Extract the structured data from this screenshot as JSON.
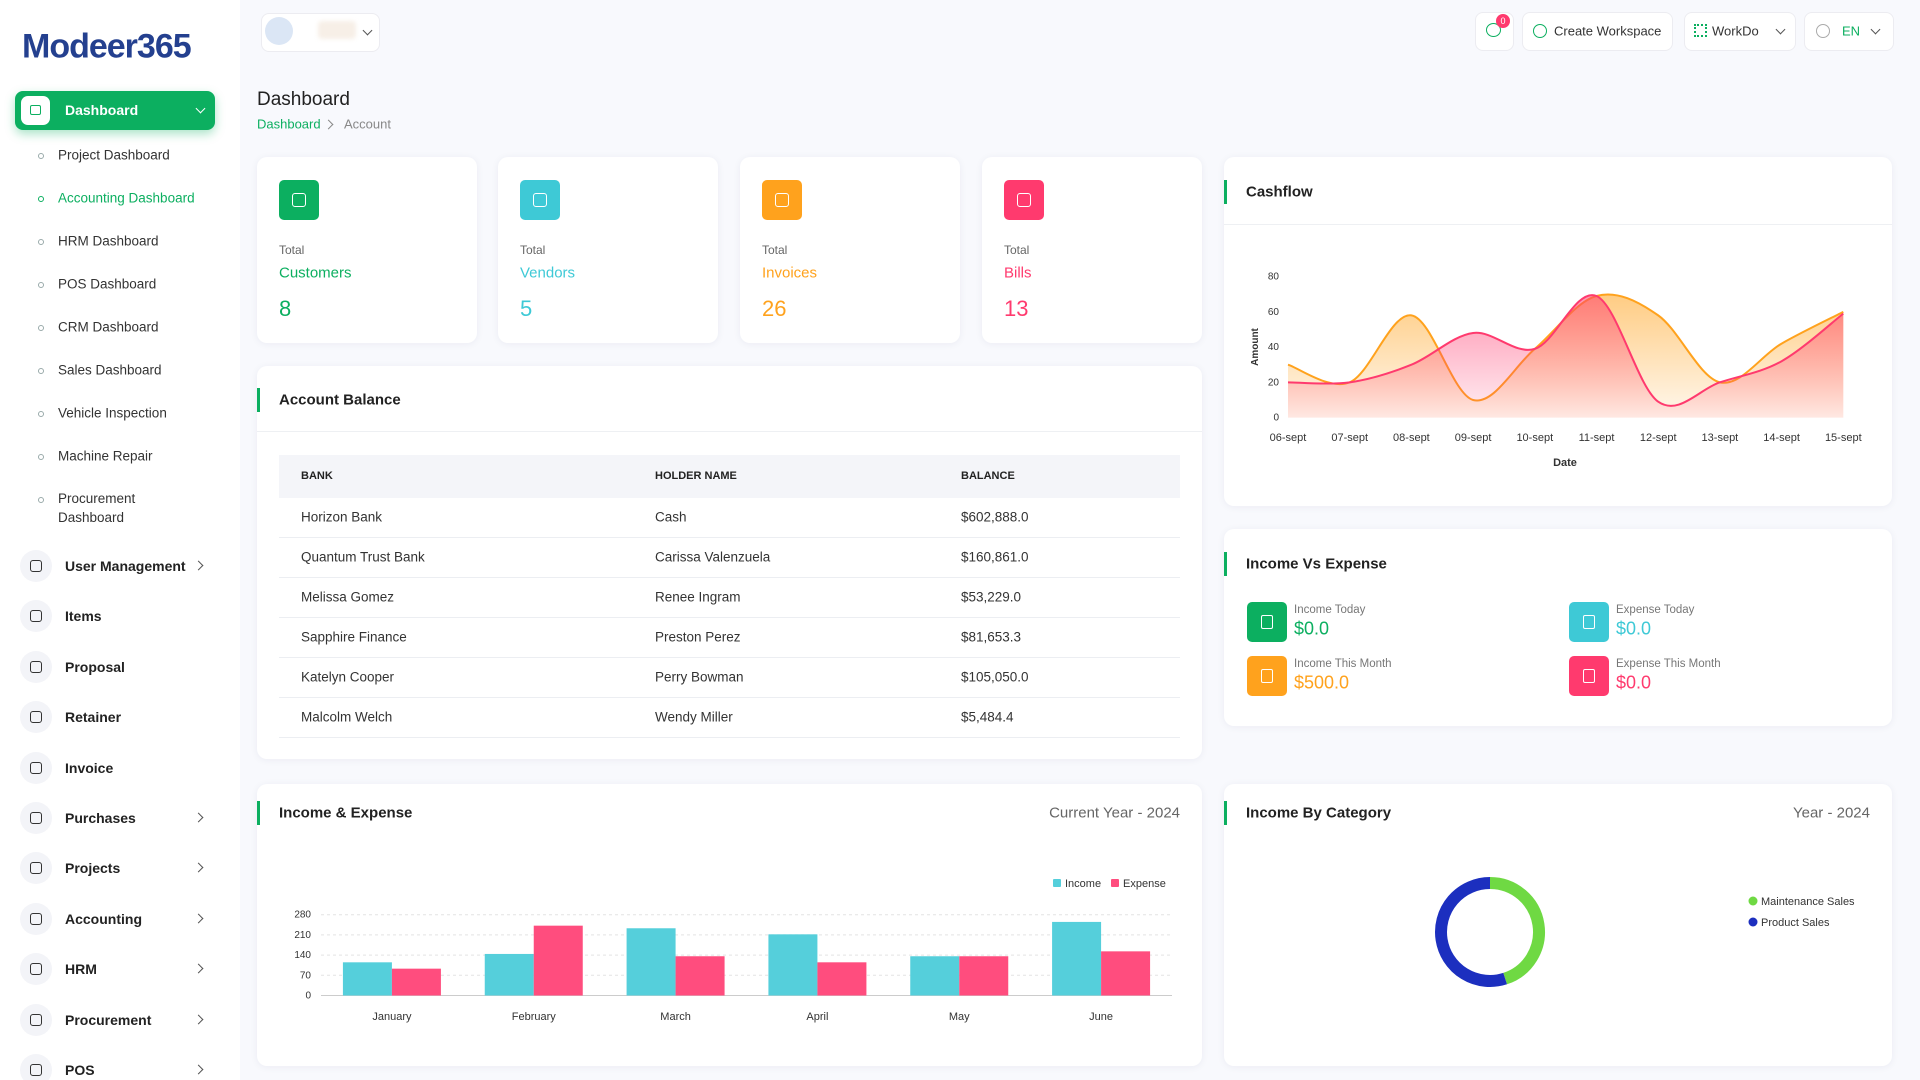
{
  "brand": "Modeer365",
  "topbar": {
    "notifications": 0,
    "create_workspace": "Create Workspace",
    "workspace": "WorkDo",
    "language": "EN"
  },
  "sidebar": {
    "dashboard": "Dashboard",
    "submenu": [
      {
        "label": "Project Dashboard",
        "active": false
      },
      {
        "label": "Accounting Dashboard",
        "active": true
      },
      {
        "label": "HRM Dashboard",
        "active": false
      },
      {
        "label": "POS Dashboard",
        "active": false
      },
      {
        "label": "CRM Dashboard",
        "active": false
      },
      {
        "label": "Sales Dashboard",
        "active": false
      },
      {
        "label": "Vehicle Inspection",
        "active": false
      },
      {
        "label": "Machine Repair",
        "active": false
      },
      {
        "label": "Procurement Dashboard",
        "active": false
      }
    ],
    "items": [
      {
        "label": "User Management",
        "expandable": true
      },
      {
        "label": "Items",
        "expandable": false
      },
      {
        "label": "Proposal",
        "expandable": false
      },
      {
        "label": "Retainer",
        "expandable": false
      },
      {
        "label": "Invoice",
        "expandable": false
      },
      {
        "label": "Purchases",
        "expandable": true
      },
      {
        "label": "Projects",
        "expandable": true
      },
      {
        "label": "Accounting",
        "expandable": true
      },
      {
        "label": "HRM",
        "expandable": true
      },
      {
        "label": "Procurement",
        "expandable": true
      },
      {
        "label": "POS",
        "expandable": true
      }
    ]
  },
  "page": {
    "title": "Dashboard",
    "breadcrumb": [
      "Dashboard",
      "Account"
    ]
  },
  "stats": [
    {
      "caption": "Total",
      "label": "Customers",
      "value": 8,
      "color": "#0caf60"
    },
    {
      "caption": "Total",
      "label": "Vendors",
      "value": 5,
      "color": "#3ec9d6"
    },
    {
      "caption": "Total",
      "label": "Invoices",
      "value": 26,
      "color": "#ffa21d"
    },
    {
      "caption": "Total",
      "label": "Bills",
      "value": 13,
      "color": "#ff3a6e"
    }
  ],
  "account_balance": {
    "title": "Account Balance",
    "columns": [
      "BANK",
      "HOLDER NAME",
      "BALANCE"
    ],
    "rows": [
      [
        "Horizon Bank",
        "Cash",
        "$602,888.0"
      ],
      [
        "Quantum Trust Bank",
        "Carissa Valenzuela",
        "$160,861.0"
      ],
      [
        "Melissa Gomez",
        "Renee Ingram",
        "$53,229.0"
      ],
      [
        "Sapphire Finance",
        "Preston Perez",
        "$81,653.3"
      ],
      [
        "Katelyn Cooper",
        "Perry Bowman",
        "$105,050.0"
      ],
      [
        "Malcolm Welch",
        "Wendy Miller",
        "$5,484.4"
      ]
    ]
  },
  "income_vs_expense": {
    "title": "Income Vs Expense",
    "items": [
      {
        "label": "Income Today",
        "value": "$0.0",
        "color": "#0caf60"
      },
      {
        "label": "Expense Today",
        "value": "$0.0",
        "color": "#3ec9d6"
      },
      {
        "label": "Income This Month",
        "value": "$500.0",
        "color": "#ffa21d"
      },
      {
        "label": "Expense This Month",
        "value": "$0.0",
        "color": "#ff3a6e"
      }
    ]
  },
  "chart_data": [
    {
      "type": "area",
      "title": "Cashflow",
      "categories": [
        "06-sept",
        "07-sept",
        "08-sept",
        "09-sept",
        "10-sept",
        "11-sept",
        "12-sept",
        "13-sept",
        "14-sept",
        "15-sept"
      ],
      "series": [
        {
          "color": "#ffa21d",
          "values": [
            30,
            20,
            58,
            10,
            39,
            69,
            58,
            20,
            42,
            60
          ]
        },
        {
          "color": "#ff3a6e",
          "values": [
            20,
            20,
            30,
            48,
            39,
            69,
            9,
            20,
            32,
            59
          ]
        }
      ],
      "ylim": [
        0,
        80
      ],
      "yticks": [
        0,
        20,
        40,
        60,
        80
      ],
      "xlabel": "Date",
      "ylabel": "Amount"
    },
    {
      "type": "bar",
      "title": "Income & Expense",
      "subtitle": "Current Year - 2024",
      "categories": [
        "January",
        "February",
        "March",
        "April",
        "May",
        "June"
      ],
      "series": [
        {
          "name": "Income",
          "color": "#55cfdb",
          "values": [
            115,
            144,
            233,
            212,
            136,
            255
          ]
        },
        {
          "name": "Expense",
          "color": "#ff4d7e",
          "values": [
            93,
            242,
            136,
            115,
            136,
            153
          ]
        }
      ],
      "ylim": [
        0,
        280
      ],
      "yticks": [
        0,
        70,
        140,
        210,
        280
      ],
      "grid": true
    },
    {
      "type": "donut",
      "title": "Income By Category",
      "subtitle": "Year - 2024",
      "categories": [
        "Maintenance Sales",
        "Product Sales"
      ],
      "values": [
        45,
        55
      ],
      "colors": [
        "#6fd943",
        "#1c2fbf"
      ]
    }
  ]
}
